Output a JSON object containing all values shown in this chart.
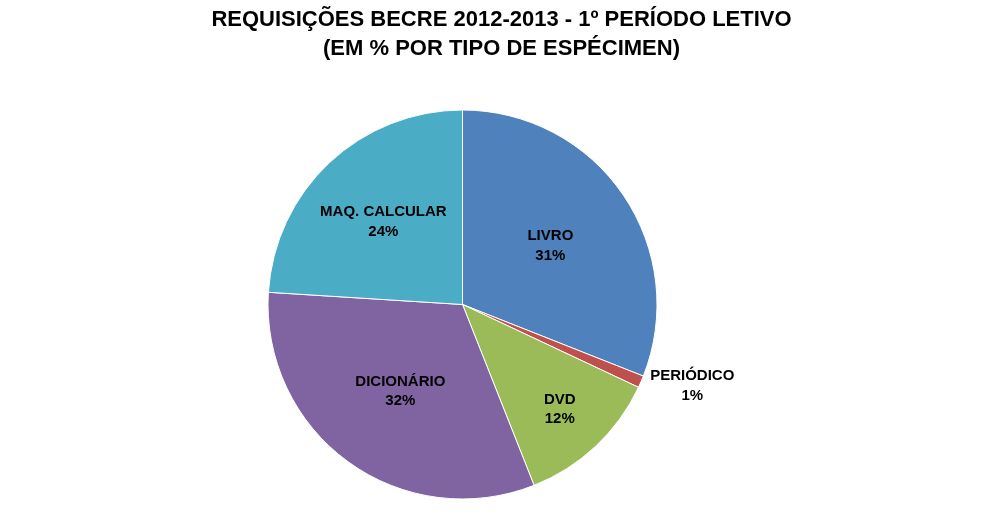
{
  "chart_data": {
    "type": "pie",
    "title": "REQUISIÇÕES BECRE 2012-2013 - 1º PERÍODO LETIVO\n(EM % POR TIPO DE ESPÉCIMEN)",
    "categories": [
      "LIVRO",
      "PERIÓDICO",
      "DVD",
      "DICIONÁRIO",
      "MAQ. CALCULAR"
    ],
    "values": [
      31,
      1,
      12,
      32,
      24
    ],
    "value_labels": [
      "31%",
      "1%",
      "12%",
      "32%",
      "24%"
    ],
    "colors": [
      "#4f81bd",
      "#c0504d",
      "#9bbb59",
      "#8064a2",
      "#4bacc6"
    ],
    "legend": false
  }
}
